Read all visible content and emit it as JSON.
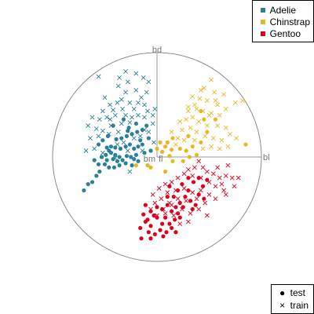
{
  "chart_data": {
    "type": "scatter",
    "title": "",
    "xlabel": "",
    "ylabel": "",
    "xlim": [
      -1,
      1
    ],
    "ylim": [
      -1,
      1
    ],
    "grid": false,
    "axes": [
      {
        "label": "bd",
        "x": 0.0,
        "y": 1.0
      },
      {
        "label": "bl",
        "x": 1.0,
        "y": 0.0
      },
      {
        "label": "bm",
        "x": 0.0,
        "y": 0.0
      },
      {
        "label": "fl",
        "x": 0.0,
        "y": 0.0
      }
    ],
    "legend_position": "top-right",
    "species_legend": [
      {
        "name": "Adelie",
        "color": "#2a7f99"
      },
      {
        "name": "Chinstrap",
        "color": "#e8b820"
      },
      {
        "name": "Gentoo",
        "color": "#e0001c"
      }
    ],
    "set_legend_position": "bottom-right",
    "set_legend": [
      {
        "name": "test",
        "glyph": "●"
      },
      {
        "name": "train",
        "glyph": "×"
      }
    ],
    "series": [
      {
        "name": "Adelie",
        "set": "test",
        "color": "#2a7f99",
        "points": [
          [
            -0.7,
            -0.32
          ],
          [
            -0.62,
            -0.24
          ],
          [
            -0.66,
            -0.26
          ],
          [
            -0.58,
            -0.18
          ],
          [
            -0.55,
            -0.14
          ],
          [
            -0.5,
            -0.07
          ],
          [
            -0.46,
            -0.1
          ],
          [
            -0.42,
            -0.02
          ],
          [
            -0.6,
            -0.03
          ],
          [
            -0.53,
            0.0
          ],
          [
            -0.49,
            0.02
          ],
          [
            -0.44,
            0.04
          ],
          [
            -0.4,
            0.02
          ],
          [
            -0.36,
            0.0
          ],
          [
            -0.33,
            -0.03
          ],
          [
            -0.29,
            0.01
          ],
          [
            -0.25,
            0.0
          ],
          [
            -0.2,
            0.02
          ],
          [
            -0.18,
            -0.04
          ],
          [
            -0.24,
            -0.08
          ],
          [
            -0.3,
            -0.06
          ],
          [
            -0.36,
            -0.08
          ],
          [
            -0.41,
            -0.1
          ],
          [
            -0.46,
            0.06
          ],
          [
            -0.48,
            0.09
          ],
          [
            -0.44,
            0.1
          ],
          [
            -0.4,
            0.09
          ],
          [
            -0.35,
            0.08
          ],
          [
            -0.3,
            0.1
          ],
          [
            -0.26,
            0.12
          ],
          [
            -0.22,
            0.08
          ],
          [
            -0.18,
            0.1
          ],
          [
            -0.14,
            0.12
          ],
          [
            -0.39,
            0.17
          ],
          [
            -0.34,
            0.18
          ],
          [
            -0.29,
            0.2
          ],
          [
            -0.24,
            0.22
          ],
          [
            -0.19,
            0.24
          ],
          [
            -0.14,
            0.26
          ],
          [
            -0.1,
            0.3
          ],
          [
            -0.42,
            0.3
          ],
          [
            -0.32,
            0.36
          ],
          [
            -0.27,
            0.28
          ],
          [
            -0.2,
            0.32
          ],
          [
            -0.16,
            0.16
          ],
          [
            -0.08,
            0.18
          ],
          [
            -0.12,
            0.04
          ],
          [
            -0.06,
            0.06
          ],
          [
            -0.56,
            0.12
          ],
          [
            -0.52,
            0.16
          ],
          [
            -0.47,
            0.2
          ],
          [
            -0.56,
            -0.07
          ],
          [
            -0.38,
            -0.04
          ],
          [
            -0.28,
            0.25
          ],
          [
            -0.22,
            -0.02
          ],
          [
            -0.48,
            -0.03
          ]
        ]
      },
      {
        "name": "Adelie",
        "set": "train",
        "color": "#2a7f99",
        "points": [
          [
            -0.56,
            0.77
          ],
          [
            -0.36,
            0.76
          ],
          [
            -0.3,
            0.82
          ],
          [
            -0.28,
            0.72
          ],
          [
            -0.2,
            0.8
          ],
          [
            -0.13,
            0.76
          ],
          [
            -0.08,
            0.72
          ],
          [
            -0.37,
            0.68
          ],
          [
            -0.3,
            0.62
          ],
          [
            -0.2,
            0.64
          ],
          [
            -0.15,
            0.57
          ],
          [
            -0.45,
            0.5
          ],
          [
            -0.38,
            0.52
          ],
          [
            -0.34,
            0.55
          ],
          [
            -0.26,
            0.52
          ],
          [
            -0.12,
            0.5
          ],
          [
            -0.52,
            0.44
          ],
          [
            -0.42,
            0.45
          ],
          [
            -0.33,
            0.46
          ],
          [
            -0.22,
            0.46
          ],
          [
            -0.09,
            0.44
          ],
          [
            -0.62,
            0.38
          ],
          [
            -0.55,
            0.36
          ],
          [
            -0.48,
            0.38
          ],
          [
            -0.4,
            0.4
          ],
          [
            -0.3,
            0.4
          ],
          [
            -0.24,
            0.38
          ],
          [
            -0.18,
            0.4
          ],
          [
            -0.12,
            0.38
          ],
          [
            -0.04,
            0.4
          ],
          [
            -0.66,
            0.3
          ],
          [
            -0.58,
            0.27
          ],
          [
            -0.52,
            0.25
          ],
          [
            -0.44,
            0.3
          ],
          [
            -0.37,
            0.24
          ],
          [
            -0.26,
            0.33
          ],
          [
            -0.12,
            0.26
          ],
          [
            -0.04,
            0.32
          ],
          [
            -0.64,
            0.18
          ],
          [
            -0.56,
            0.2
          ],
          [
            -0.38,
            0.12
          ],
          [
            -0.32,
            0.14
          ],
          [
            -0.22,
            0.18
          ],
          [
            -0.16,
            0.2
          ],
          [
            -0.08,
            0.24
          ],
          [
            -0.68,
            0.06
          ],
          [
            -0.6,
            0.08
          ],
          [
            -0.52,
            0.04
          ],
          [
            -0.4,
            -0.01
          ],
          [
            -0.28,
            0.06
          ],
          [
            -0.14,
            0.06
          ],
          [
            -0.03,
            0.14
          ],
          [
            -0.26,
            -0.14
          ],
          [
            -0.46,
            0.22
          ],
          [
            -0.02,
            0.46
          ],
          [
            -0.5,
            0.57
          ],
          [
            -0.45,
            0.36
          ],
          [
            -0.18,
            0.52
          ],
          [
            -0.1,
            0.62
          ],
          [
            -0.34,
            0.32
          ]
        ]
      },
      {
        "name": "Chinstrap",
        "set": "test",
        "color": "#e8b820",
        "points": [
          [
            0.03,
            0.14
          ],
          [
            0.1,
            0.14
          ],
          [
            0.15,
            0.18
          ],
          [
            0.08,
            0.1
          ],
          [
            0.05,
            0.05
          ],
          [
            0.14,
            0.07
          ],
          [
            0.22,
            0.08
          ],
          [
            0.28,
            0.06
          ],
          [
            0.34,
            0.1
          ],
          [
            0.42,
            0.14
          ],
          [
            0.48,
            0.24
          ],
          [
            0.56,
            0.36
          ],
          [
            0.45,
            0.36
          ],
          [
            0.42,
            0.44
          ],
          [
            0.0,
            0.08
          ],
          [
            0.12,
            0.01
          ],
          [
            0.31,
            0.0
          ],
          [
            0.3,
            0.2
          ],
          [
            0.85,
            0.12
          ],
          [
            -0.2,
            -0.08
          ],
          [
            -0.09,
            -0.08
          ],
          [
            -0.06,
            -0.1
          ],
          [
            0.15,
            -0.04
          ],
          [
            0.08,
            -0.14
          ],
          [
            0.25,
            -0.04
          ],
          [
            0.38,
            0.02
          ]
        ]
      },
      {
        "name": "Chinstrap",
        "set": "train",
        "color": "#e8b820",
        "points": [
          [
            0.52,
            0.74
          ],
          [
            0.45,
            0.66
          ],
          [
            0.55,
            0.62
          ],
          [
            0.64,
            0.6
          ],
          [
            0.75,
            0.52
          ],
          [
            0.82,
            0.54
          ],
          [
            0.34,
            0.58
          ],
          [
            0.41,
            0.56
          ],
          [
            0.48,
            0.54
          ],
          [
            0.58,
            0.5
          ],
          [
            0.66,
            0.46
          ],
          [
            0.3,
            0.48
          ],
          [
            0.38,
            0.46
          ],
          [
            0.44,
            0.44
          ],
          [
            0.52,
            0.42
          ],
          [
            0.6,
            0.4
          ],
          [
            0.28,
            0.36
          ],
          [
            0.34,
            0.38
          ],
          [
            0.4,
            0.34
          ],
          [
            0.48,
            0.3
          ],
          [
            0.58,
            0.3
          ],
          [
            0.66,
            0.28
          ],
          [
            0.24,
            0.26
          ],
          [
            0.32,
            0.28
          ],
          [
            0.38,
            0.24
          ],
          [
            0.46,
            0.2
          ],
          [
            0.54,
            0.18
          ],
          [
            0.62,
            0.16
          ],
          [
            0.7,
            0.22
          ],
          [
            0.2,
            0.18
          ],
          [
            0.26,
            0.16
          ],
          [
            0.36,
            0.16
          ],
          [
            0.44,
            0.08
          ],
          [
            0.52,
            0.1
          ],
          [
            0.6,
            0.08
          ],
          [
            0.68,
            0.1
          ],
          [
            0.76,
            0.18
          ],
          [
            0.14,
            0.24
          ],
          [
            0.22,
            0.34
          ],
          [
            0.3,
            0.44
          ],
          [
            0.56,
            0.54
          ],
          [
            0.42,
            0.64
          ],
          [
            0.18,
            0.12
          ],
          [
            0.5,
            0.4
          ],
          [
            0.36,
            0.5
          ]
        ]
      },
      {
        "name": "Gentoo",
        "set": "test",
        "color": "#e0001c",
        "points": [
          [
            -0.13,
            -0.55
          ],
          [
            -0.09,
            -0.6
          ],
          [
            -0.06,
            -0.66
          ],
          [
            0.0,
            -0.58
          ],
          [
            0.05,
            -0.64
          ],
          [
            0.08,
            -0.58
          ],
          [
            0.12,
            -0.64
          ],
          [
            0.17,
            -0.6
          ],
          [
            0.2,
            -0.54
          ],
          [
            0.25,
            -0.48
          ],
          [
            0.22,
            -0.44
          ],
          [
            0.18,
            -0.48
          ],
          [
            0.14,
            -0.52
          ],
          [
            0.1,
            -0.46
          ],
          [
            0.05,
            -0.5
          ],
          [
            0.0,
            -0.48
          ],
          [
            -0.06,
            -0.52
          ],
          [
            -0.11,
            -0.46
          ],
          [
            -0.08,
            -0.72
          ],
          [
            -0.02,
            -0.74
          ],
          [
            0.03,
            -0.7
          ],
          [
            0.09,
            -0.72
          ],
          [
            0.14,
            -0.68
          ],
          [
            -0.16,
            -0.68
          ],
          [
            0.2,
            -0.32
          ],
          [
            0.27,
            -0.38
          ],
          [
            0.32,
            -0.42
          ],
          [
            0.37,
            -0.46
          ],
          [
            0.4,
            -0.36
          ],
          [
            0.44,
            -0.28
          ],
          [
            0.48,
            -0.22
          ],
          [
            0.3,
            -0.2
          ],
          [
            0.35,
            -0.24
          ],
          [
            0.4,
            -0.2
          ],
          [
            0.24,
            -0.26
          ],
          [
            0.3,
            -0.32
          ],
          [
            0.16,
            -0.38
          ],
          [
            0.12,
            -0.28
          ],
          [
            -0.15,
            -0.78
          ],
          [
            -0.06,
            -0.78
          ],
          [
            0.06,
            -0.76
          ],
          [
            -0.03,
            -0.56
          ],
          [
            0.22,
            -0.58
          ],
          [
            -0.11,
            -0.62
          ],
          [
            0.1,
            -0.38
          ],
          [
            0.45,
            -0.4
          ],
          [
            0.34,
            -0.5
          ],
          [
            0.18,
            -0.72
          ]
        ]
      },
      {
        "name": "Gentoo",
        "set": "train",
        "color": "#e0001c",
        "points": [
          [
            0.4,
            -0.04
          ],
          [
            0.44,
            -0.1
          ],
          [
            0.48,
            -0.14
          ],
          [
            0.54,
            -0.16
          ],
          [
            0.6,
            -0.2
          ],
          [
            0.66,
            -0.18
          ],
          [
            0.72,
            -0.2
          ],
          [
            0.36,
            -0.1
          ],
          [
            0.3,
            -0.12
          ],
          [
            0.26,
            -0.16
          ],
          [
            0.34,
            -0.18
          ],
          [
            0.42,
            -0.2
          ],
          [
            0.5,
            -0.24
          ],
          [
            0.56,
            -0.28
          ],
          [
            0.62,
            -0.26
          ],
          [
            0.2,
            -0.2
          ],
          [
            0.14,
            -0.24
          ],
          [
            0.08,
            -0.26
          ],
          [
            0.02,
            -0.3
          ],
          [
            0.1,
            -0.34
          ],
          [
            0.18,
            -0.32
          ],
          [
            0.26,
            -0.3
          ],
          [
            0.34,
            -0.34
          ],
          [
            0.42,
            -0.32
          ],
          [
            0.5,
            -0.36
          ],
          [
            0.56,
            -0.4
          ],
          [
            0.46,
            -0.44
          ],
          [
            0.38,
            -0.4
          ],
          [
            0.28,
            -0.42
          ],
          [
            0.2,
            -0.4
          ],
          [
            0.12,
            -0.44
          ],
          [
            0.04,
            -0.4
          ],
          [
            -0.04,
            -0.36
          ],
          [
            -0.02,
            -0.44
          ],
          [
            0.06,
            -0.5
          ],
          [
            0.14,
            -0.46
          ],
          [
            0.24,
            -0.5
          ],
          [
            0.32,
            -0.54
          ],
          [
            0.4,
            -0.5
          ],
          [
            0.48,
            -0.56
          ],
          [
            0.16,
            -0.56
          ],
          [
            0.08,
            -0.54
          ],
          [
            0.0,
            -0.56
          ],
          [
            -0.06,
            -0.5
          ],
          [
            0.3,
            -0.62
          ],
          [
            0.22,
            -0.64
          ],
          [
            0.66,
            -0.36
          ],
          [
            0.58,
            -0.1
          ],
          [
            0.74,
            -0.28
          ],
          [
            0.64,
            -0.32
          ],
          [
            0.68,
            -0.08
          ],
          [
            0.78,
            -0.2
          ]
        ]
      }
    ]
  }
}
